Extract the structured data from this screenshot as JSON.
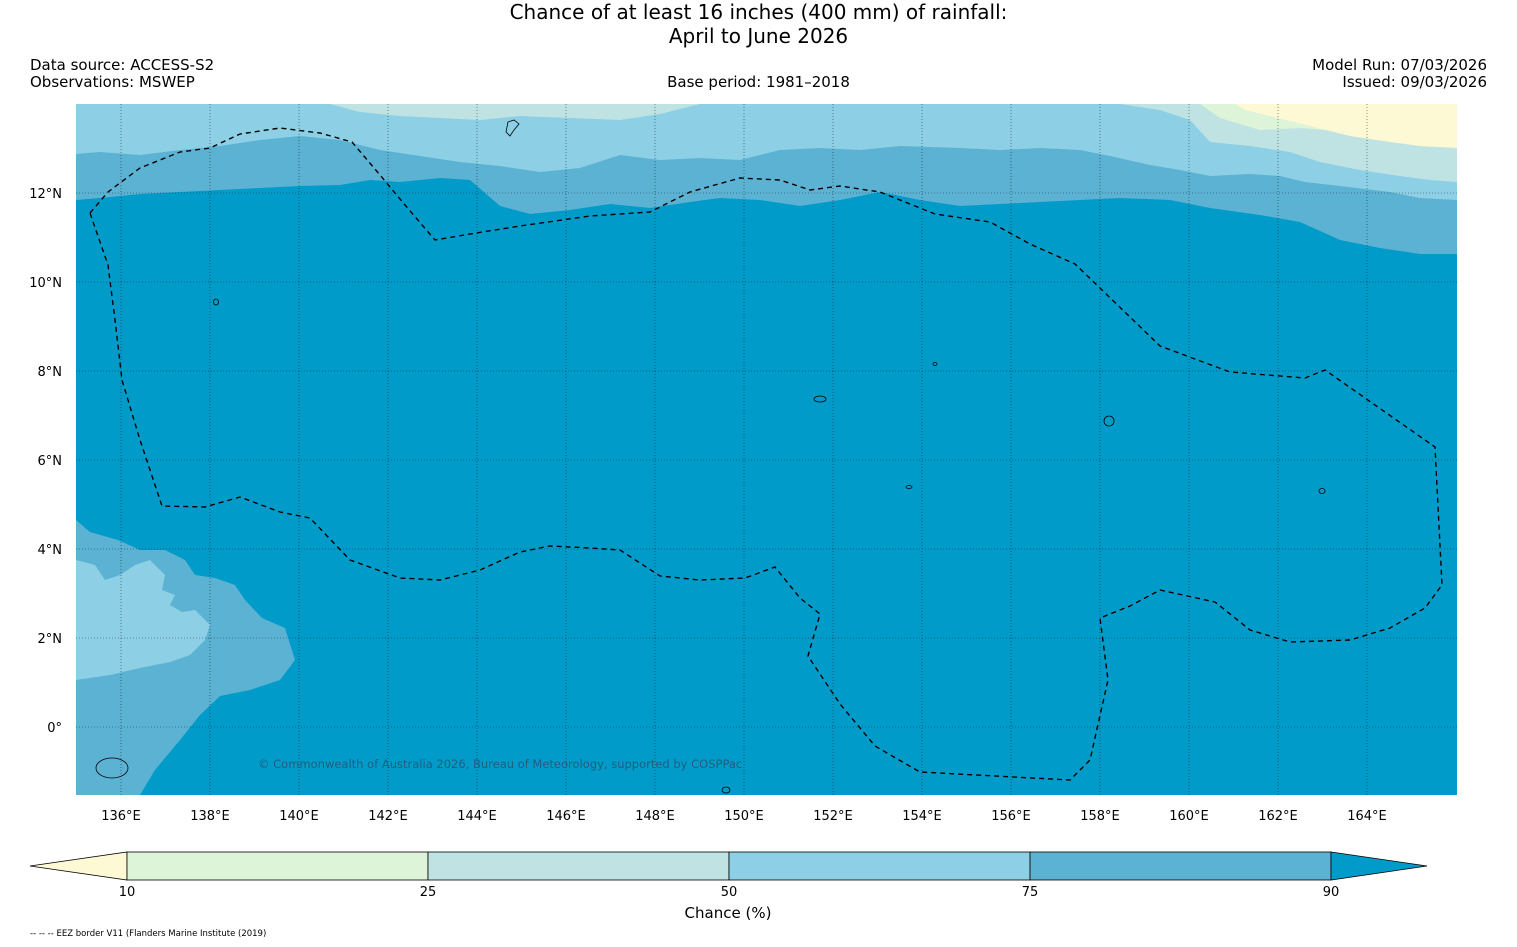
{
  "title": {
    "line1": "Chance of at least 16 inches (400  mm) of rainfall:",
    "line2": "April to June 2026"
  },
  "meta": {
    "data_source": "Data source: ACCESS-S2",
    "observations": "Observations: MSWEP",
    "base_period": "Base period: 1981–2018",
    "model_run": "Model Run: 07/03/2026",
    "issued": "Issued: 09/03/2026"
  },
  "map": {
    "region": "Federated States of Micronesia and surrounding western Pacific",
    "lon_range": [
      135,
      166
    ],
    "lat_range": [
      -1.5,
      14
    ],
    "lon_ticks": [
      "136°E",
      "138°E",
      "140°E",
      "142°E",
      "144°E",
      "146°E",
      "148°E",
      "150°E",
      "152°E",
      "154°E",
      "156°E",
      "158°E",
      "160°E",
      "162°E",
      "164°E"
    ],
    "lat_ticks": [
      "12°N",
      "10°N",
      "8°N",
      "6°N",
      "4°N",
      "2°N",
      "0°"
    ],
    "copyright": "© Commonwealth of Australia 2026, Bureau of Meteorology, supported by COSPPac",
    "dominant_category": ">90%",
    "colors": {
      "under_10": "#fdf9d5",
      "c10_25": "#def4d8",
      "c25_50": "#bfe3e3",
      "c50_75": "#8dd0e6",
      "c75_90": "#5bb2d3",
      "over_90": "#009bc9"
    }
  },
  "colorbar": {
    "label": "Chance (%)",
    "ticks": [
      "10",
      "25",
      "50",
      "75",
      "90"
    ]
  },
  "footnote": "-- -- -- EEZ border V11 (Flanders Marine Institute (2019)"
}
